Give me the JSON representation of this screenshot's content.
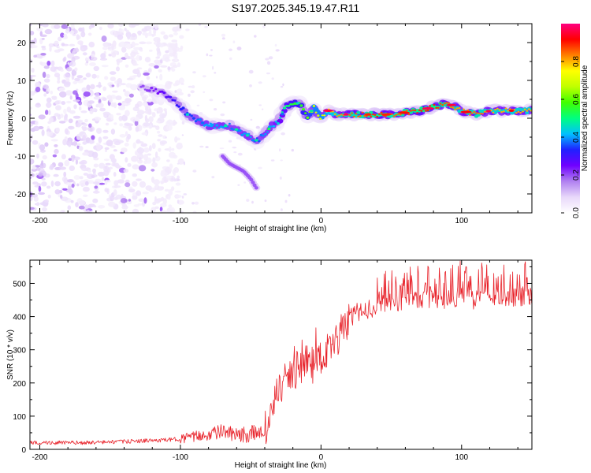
{
  "title": "S197.2025.345.19.47.R11",
  "colors": {
    "background": "#ffffff",
    "snr_line": "#e8222a",
    "ridge_core": "#ff2a1a",
    "noise_light": "#d8c2f0",
    "noise_dark": "#6a1ad8"
  },
  "chart_data": [
    {
      "type": "heatmap",
      "title": "S197.2025.345.19.47.R11",
      "xlabel": "Height of straight line (km)",
      "ylabel": "Frequency (Hz)",
      "xlim": [
        -207,
        150
      ],
      "ylim": [
        -25,
        25
      ],
      "xticks": [
        -200,
        -100,
        0,
        100
      ],
      "xtick_labels": [
        "-200",
        "-100",
        "0",
        "100"
      ],
      "yticks": [
        -20,
        -10,
        0,
        10,
        20
      ],
      "ytick_labels": [
        "-20",
        "-10",
        "0",
        "10",
        "20"
      ],
      "colorbar": {
        "label": "Normalized spectral amplitude",
        "range": [
          0,
          1
        ],
        "ticks": [
          0.0,
          0.2,
          0.4,
          0.6,
          0.8
        ],
        "tick_labels": [
          "0.0",
          "0.2",
          "0.4",
          "0.6",
          "0.8"
        ],
        "colormap": [
          "#ffffff",
          "#e8d8fa",
          "#b080f0",
          "#7000ff",
          "#2020ff",
          "#00c0ff",
          "#00ff80",
          "#40ff00",
          "#c0ff00",
          "#ffff00",
          "#ff8000",
          "#ff0000",
          "#ff0080"
        ]
      },
      "ridge": {
        "x": [
          -125,
          -115,
          -105,
          -100,
          -95,
          -90,
          -85,
          -80,
          -75,
          -70,
          -65,
          -60,
          -55,
          -50,
          -45,
          -40,
          -35,
          -30,
          -25,
          -20,
          -15,
          -10,
          -5,
          0,
          5,
          10,
          20,
          30,
          40,
          50,
          60,
          70,
          80,
          90,
          100,
          110,
          120,
          130,
          140,
          150
        ],
        "frequency_hz": [
          8,
          7,
          5,
          3,
          1,
          0,
          -1,
          -2,
          -2,
          -2,
          -2,
          -3,
          -4,
          -5,
          -6,
          -4,
          -2,
          -1,
          3,
          4,
          4,
          0,
          3,
          0,
          2,
          1,
          1,
          1,
          1,
          1,
          1.5,
          2,
          3,
          4,
          2,
          1,
          2,
          2,
          2,
          2
        ],
        "amplitude": [
          0.2,
          0.25,
          0.3,
          0.32,
          0.35,
          0.35,
          0.4,
          0.4,
          0.4,
          0.4,
          0.38,
          0.38,
          0.4,
          0.4,
          0.35,
          0.4,
          0.4,
          0.45,
          0.5,
          0.55,
          0.55,
          0.6,
          0.7,
          0.7,
          0.75,
          0.8,
          0.85,
          0.85,
          0.9,
          0.85,
          0.85,
          0.9,
          0.9,
          0.85,
          0.8,
          0.85,
          0.8,
          0.8,
          0.8,
          0.8
        ]
      },
      "branch": {
        "x": [
          -70,
          -65,
          -60,
          -55,
          -50,
          -45
        ],
        "frequency_hz": [
          -10,
          -12,
          -13,
          -14,
          -16,
          -19
        ]
      }
    },
    {
      "type": "line",
      "xlabel": "Height of straight line (km)",
      "ylabel": "SNR (10 * v/v)",
      "xlim": [
        -207,
        150
      ],
      "ylim": [
        0,
        570
      ],
      "xticks": [
        -200,
        -100,
        0,
        100
      ],
      "xtick_labels": [
        "-200",
        "-100",
        "0",
        "100"
      ],
      "yticks": [
        0,
        100,
        200,
        300,
        400,
        500
      ],
      "ytick_labels": [
        "0",
        "100",
        "200",
        "300",
        "400",
        "500"
      ],
      "series": [
        {
          "name": "SNR",
          "x": [
            -207,
            -190,
            -170,
            -150,
            -130,
            -110,
            -100,
            -90,
            -80,
            -70,
            -60,
            -50,
            -40,
            -35,
            -30,
            -25,
            -20,
            -15,
            -10,
            -5,
            0,
            5,
            10,
            15,
            20,
            25,
            30,
            40,
            50,
            60,
            70,
            80,
            90,
            100,
            110,
            120,
            130,
            140,
            150
          ],
          "y": [
            20,
            20,
            20,
            22,
            25,
            28,
            32,
            38,
            45,
            55,
            40,
            45,
            60,
            120,
            170,
            210,
            230,
            250,
            270,
            250,
            280,
            300,
            320,
            360,
            390,
            410,
            420,
            430,
            440,
            450,
            445,
            450,
            455,
            460,
            450,
            455,
            460,
            460,
            465
          ]
        }
      ]
    }
  ]
}
